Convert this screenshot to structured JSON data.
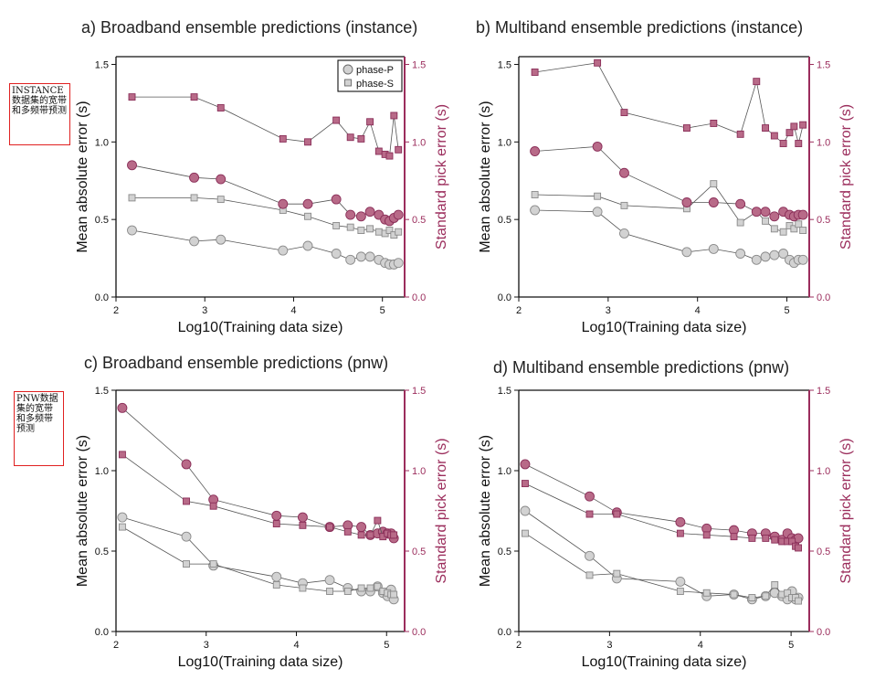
{
  "notes": {
    "instance": "INSTANCE数据集的宽带和多频带预测",
    "pnw": "PNW数据集的宽带和多频带预测"
  },
  "colors": {
    "p_fill": "#d2d2d2",
    "p_stroke": "#8a8a8a",
    "s_fill": "#b86a88",
    "s_stroke": "#8a2e58",
    "right_axis": "#9b2d5c"
  },
  "chart_data": [
    {
      "id": "a",
      "type": "scatter",
      "title": "a) Broadband ensemble predictions (instance)",
      "xlabel": "Log10(Training data size)",
      "ylabel": "Mean absolute error (s)",
      "y2label": "Standard pick error (s)",
      "xlim": [
        2,
        5.25
      ],
      "ylim": [
        0,
        1.55
      ],
      "xticks": [
        2,
        3,
        4,
        5
      ],
      "yticks": [
        0.0,
        0.5,
        1.0,
        1.5
      ],
      "ytick_labels": [
        "0.0",
        "0.5",
        "1.0",
        "1.5"
      ],
      "legend": {
        "position": "top-right",
        "entries": [
          "phase-P",
          "phase-S"
        ]
      },
      "x": [
        2.18,
        2.88,
        3.18,
        3.88,
        4.16,
        4.48,
        4.64,
        4.76,
        4.86,
        4.96,
        5.03,
        5.08,
        5.13,
        5.18
      ],
      "series": [
        {
          "name": "phase-P",
          "metric": "mae",
          "marker": "circle",
          "values": [
            0.43,
            0.36,
            0.37,
            0.3,
            0.33,
            0.28,
            0.24,
            0.26,
            0.26,
            0.24,
            0.22,
            0.21,
            0.21,
            0.22
          ]
        },
        {
          "name": "phase-S",
          "metric": "mae",
          "marker": "square",
          "values": [
            0.64,
            0.64,
            0.63,
            0.56,
            0.52,
            0.46,
            0.45,
            0.43,
            0.44,
            0.42,
            0.41,
            0.43,
            0.4,
            0.42
          ]
        },
        {
          "name": "phase-P",
          "metric": "std",
          "marker": "circle",
          "values": [
            0.85,
            0.77,
            0.76,
            0.6,
            0.6,
            0.63,
            0.53,
            0.52,
            0.55,
            0.53,
            0.5,
            0.49,
            0.51,
            0.53
          ]
        },
        {
          "name": "phase-S",
          "metric": "std",
          "marker": "square",
          "values": [
            1.29,
            1.29,
            1.22,
            1.02,
            1.0,
            1.14,
            1.03,
            1.02,
            1.13,
            0.94,
            0.92,
            0.91,
            1.17,
            0.95
          ]
        }
      ]
    },
    {
      "id": "b",
      "type": "scatter",
      "title": "b) Multiband ensemble predictions (instance)",
      "xlabel": "Log10(Training data size)",
      "ylabel": "Mean absolute error (s)",
      "y2label": "Standard pick error (s)",
      "xlim": [
        2,
        5.25
      ],
      "ylim": [
        0,
        1.55
      ],
      "xticks": [
        2,
        3,
        4,
        5
      ],
      "yticks": [
        0.0,
        0.5,
        1.0,
        1.5
      ],
      "ytick_labels": [
        "0.0",
        "0.5",
        "1.0",
        "1.5"
      ],
      "x": [
        2.18,
        2.88,
        3.18,
        3.88,
        4.18,
        4.48,
        4.66,
        4.76,
        4.86,
        4.96,
        5.03,
        5.08,
        5.13,
        5.18
      ],
      "series": [
        {
          "name": "phase-P",
          "metric": "mae",
          "marker": "circle",
          "values": [
            0.56,
            0.55,
            0.41,
            0.29,
            0.31,
            0.28,
            0.24,
            0.26,
            0.27,
            0.28,
            0.24,
            0.22,
            0.24,
            0.24
          ]
        },
        {
          "name": "phase-S",
          "metric": "mae",
          "marker": "square",
          "values": [
            0.66,
            0.65,
            0.59,
            0.57,
            0.73,
            0.48,
            0.55,
            0.49,
            0.44,
            0.42,
            0.46,
            0.44,
            0.47,
            0.43
          ]
        },
        {
          "name": "phase-P",
          "metric": "std",
          "marker": "circle",
          "values": [
            0.94,
            0.97,
            0.8,
            0.61,
            0.61,
            0.6,
            0.55,
            0.55,
            0.52,
            0.55,
            0.53,
            0.52,
            0.53,
            0.53
          ]
        },
        {
          "name": "phase-S",
          "metric": "std",
          "marker": "square",
          "values": [
            1.45,
            1.51,
            1.19,
            1.09,
            1.12,
            1.05,
            1.39,
            1.09,
            1.04,
            0.99,
            1.06,
            1.1,
            0.99,
            1.11
          ]
        }
      ]
    },
    {
      "id": "c",
      "type": "scatter",
      "title": "c) Broadband ensemble predictions (pnw)",
      "xlabel": "Log10(Training data size)",
      "ylabel": "Mean absolute error (s)",
      "y2label": "Standard pick error (s)",
      "xlim": [
        2,
        5.2
      ],
      "ylim": [
        0,
        1.5
      ],
      "xticks": [
        2,
        3,
        4,
        5
      ],
      "yticks": [
        0.0,
        0.5,
        1.0,
        1.5
      ],
      "ytick_labels": [
        "0.0",
        "0.5",
        "1.0",
        "1.5"
      ],
      "x": [
        2.07,
        2.78,
        3.08,
        3.78,
        4.07,
        4.37,
        4.57,
        4.72,
        4.82,
        4.9,
        4.96,
        5.01,
        5.05,
        5.08
      ],
      "series": [
        {
          "name": "phase-P",
          "metric": "mae",
          "marker": "circle",
          "values": [
            0.71,
            0.59,
            0.41,
            0.34,
            0.3,
            0.32,
            0.27,
            0.25,
            0.25,
            0.28,
            0.24,
            0.22,
            0.26,
            0.2
          ]
        },
        {
          "name": "phase-S",
          "metric": "mae",
          "marker": "square",
          "values": [
            0.65,
            0.42,
            0.42,
            0.29,
            0.27,
            0.25,
            0.25,
            0.27,
            0.27,
            0.28,
            0.25,
            0.24,
            0.23,
            0.23
          ]
        },
        {
          "name": "phase-P",
          "metric": "std",
          "marker": "circle",
          "values": [
            1.39,
            1.04,
            0.82,
            0.72,
            0.71,
            0.65,
            0.66,
            0.65,
            0.6,
            0.61,
            0.62,
            0.61,
            0.61,
            0.58
          ]
        },
        {
          "name": "phase-S",
          "metric": "std",
          "marker": "square",
          "values": [
            1.1,
            0.81,
            0.78,
            0.67,
            0.66,
            0.65,
            0.62,
            0.6,
            0.6,
            0.69,
            0.59,
            0.61,
            0.6,
            0.6
          ]
        }
      ]
    },
    {
      "id": "d",
      "type": "scatter",
      "title": "d) Multiband ensemble predictions (pnw)",
      "xlabel": "Log10(Training data size)",
      "ylabel": "Mean absolute error (s)",
      "y2label": "Standard pick error (s)",
      "xlim": [
        2,
        5.2
      ],
      "ylim": [
        0,
        1.5
      ],
      "xticks": [
        2,
        3,
        4,
        5
      ],
      "yticks": [
        0.0,
        0.5,
        1.0,
        1.5
      ],
      "ytick_labels": [
        "0.0",
        "0.5",
        "1.0",
        "1.5"
      ],
      "x": [
        2.07,
        2.78,
        3.08,
        3.78,
        4.07,
        4.37,
        4.57,
        4.72,
        4.82,
        4.9,
        4.96,
        5.01,
        5.05,
        5.08
      ],
      "series": [
        {
          "name": "phase-P",
          "metric": "mae",
          "marker": "circle",
          "values": [
            0.75,
            0.47,
            0.33,
            0.31,
            0.22,
            0.23,
            0.2,
            0.22,
            0.24,
            0.22,
            0.2,
            0.25,
            0.2,
            0.21
          ]
        },
        {
          "name": "phase-S",
          "metric": "mae",
          "marker": "square",
          "values": [
            0.61,
            0.35,
            0.36,
            0.25,
            0.24,
            0.23,
            0.21,
            0.22,
            0.29,
            0.23,
            0.24,
            0.21,
            0.21,
            0.19
          ]
        },
        {
          "name": "phase-P",
          "metric": "std",
          "marker": "circle",
          "values": [
            1.04,
            0.84,
            0.74,
            0.68,
            0.64,
            0.63,
            0.61,
            0.61,
            0.59,
            0.57,
            0.61,
            0.58,
            0.57,
            0.58
          ]
        },
        {
          "name": "phase-S",
          "metric": "std",
          "marker": "square",
          "values": [
            0.92,
            0.73,
            0.73,
            0.61,
            0.6,
            0.59,
            0.58,
            0.58,
            0.57,
            0.56,
            0.56,
            0.56,
            0.53,
            0.52
          ]
        }
      ]
    }
  ]
}
